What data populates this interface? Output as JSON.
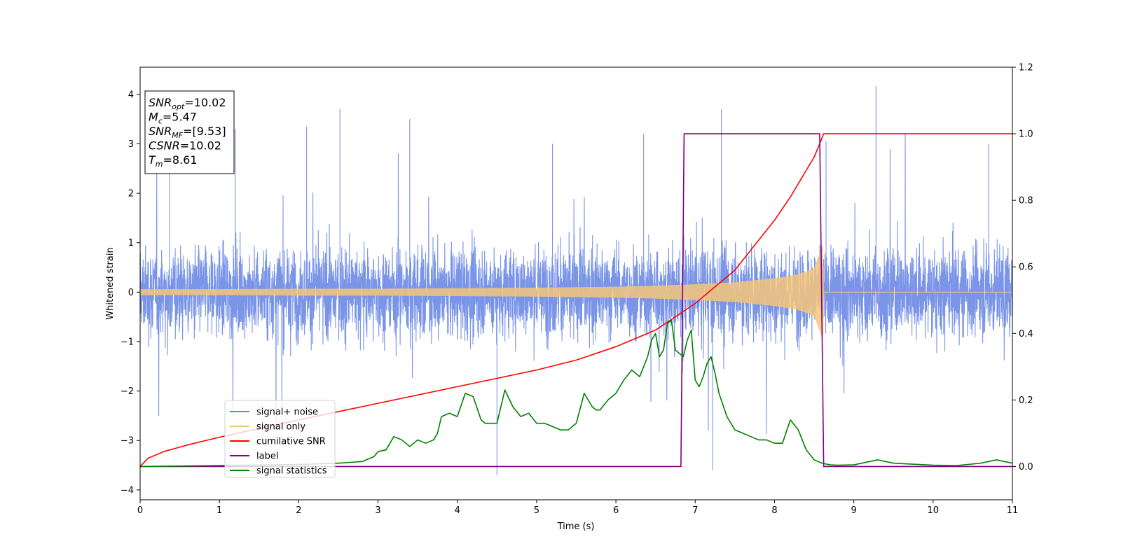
{
  "chart_data": {
    "type": "line",
    "xlabel": "Time (s)",
    "ylabel": "Whitened strain",
    "xlim": [
      0,
      11
    ],
    "ylim_left": [
      -4.2,
      4.55
    ],
    "ylim_right": [
      -0.1,
      1.2
    ],
    "x_ticks": [
      0,
      1,
      2,
      3,
      4,
      5,
      6,
      7,
      8,
      9,
      10,
      11
    ],
    "y_left_ticks": [
      -4,
      -3,
      -2,
      -1,
      0,
      1,
      2,
      3,
      4
    ],
    "y_right_ticks": [
      0.0,
      0.2,
      0.4,
      0.6,
      0.8,
      1.0,
      1.2
    ],
    "x_tick_labels": [
      "0",
      "1",
      "2",
      "3",
      "4",
      "5",
      "6",
      "7",
      "8",
      "9",
      "10",
      "11"
    ],
    "y_left_tick_labels": [
      "−4",
      "−3",
      "−2",
      "−1",
      "0",
      "1",
      "2",
      "3",
      "4"
    ],
    "y_right_tick_labels": [
      "0.0",
      "0.2",
      "0.4",
      "0.6",
      "0.8",
      "1.0",
      "1.2"
    ],
    "legend": {
      "placement": "lower-left",
      "entries": [
        {
          "label": "signal+ noise",
          "color": "#6b8ae6"
        },
        {
          "label": "signal only",
          "color": "#f5c57a"
        },
        {
          "label": "cumilative SNR",
          "color": "#ff0000"
        },
        {
          "label": "label",
          "color": "#800080"
        },
        {
          "label": "signal statistics",
          "color": "#008000"
        }
      ]
    },
    "info_box": [
      {
        "main": "SNR",
        "sub": "opt",
        "rest": "=10.02"
      },
      {
        "main": "M",
        "sub": "c",
        "rest": "=5.47"
      },
      {
        "main": "SNR",
        "sub": "MF",
        "rest": "=[9.53]"
      },
      {
        "main": "CSNR",
        "sub": "",
        "rest": "=10.02"
      },
      {
        "main": "T",
        "sub": "m",
        "rest": "=8.61"
      }
    ],
    "series": [
      {
        "name": "signal+ noise",
        "axis": "left",
        "color": "#6b8ae6",
        "envelope": {
          "typical_amplitude": 1.6,
          "max": 4.17,
          "min": -3.7
        },
        "spikes": [
          [
            0.37,
            3.1
          ],
          [
            1.2,
            3.3
          ],
          [
            2.1,
            3.35
          ],
          [
            2.52,
            3.7
          ],
          [
            3.4,
            3.5
          ],
          [
            4.5,
            -3.7
          ],
          [
            5.2,
            3.0
          ],
          [
            6.35,
            3.2
          ],
          [
            7.33,
            3.7
          ],
          [
            7.22,
            -3.6
          ],
          [
            8.65,
            3.05
          ],
          [
            9.28,
            4.17
          ],
          [
            10.7,
            3.0
          ]
        ]
      },
      {
        "name": "signal only",
        "axis": "left",
        "color": "#f5c57a",
        "amplitude": {
          "x": [
            0,
            1,
            2,
            3,
            4,
            5,
            6,
            6.5,
            7,
            7.5,
            8,
            8.3,
            8.5,
            8.61,
            8.62,
            11
          ],
          "y": [
            0.06,
            0.06,
            0.07,
            0.07,
            0.08,
            0.09,
            0.11,
            0.13,
            0.16,
            0.2,
            0.28,
            0.36,
            0.48,
            0.95,
            0.0,
            0.0
          ]
        }
      },
      {
        "name": "cumilative SNR",
        "axis": "right",
        "color": "#ff0000",
        "x": [
          0,
          0.1,
          0.3,
          0.6,
          1,
          2,
          3,
          4,
          5,
          5.5,
          6,
          6.5,
          7,
          7.5,
          8,
          8.2,
          8.4,
          8.5,
          8.57,
          8.62,
          11
        ],
        "y": [
          0.0,
          0.025,
          0.045,
          0.065,
          0.088,
          0.14,
          0.19,
          0.24,
          0.29,
          0.32,
          0.36,
          0.41,
          0.49,
          0.59,
          0.74,
          0.81,
          0.89,
          0.93,
          0.97,
          1.0,
          1.0
        ]
      },
      {
        "name": "label",
        "axis": "right",
        "color": "#800080",
        "x": [
          0,
          6.82,
          6.86,
          8.57,
          8.62,
          11
        ],
        "y": [
          0,
          0,
          1,
          1,
          0,
          0
        ]
      },
      {
        "name": "signal statistics",
        "axis": "right",
        "color": "#008000",
        "x": [
          0,
          1,
          2,
          2.5,
          2.8,
          2.95,
          3.0,
          3.1,
          3.2,
          3.3,
          3.4,
          3.5,
          3.6,
          3.7,
          3.75,
          3.8,
          3.9,
          4.0,
          4.1,
          4.2,
          4.3,
          4.35,
          4.4,
          4.5,
          4.6,
          4.7,
          4.8,
          4.9,
          5.0,
          5.1,
          5.2,
          5.3,
          5.4,
          5.5,
          5.6,
          5.7,
          5.75,
          5.8,
          5.9,
          6.0,
          6.1,
          6.2,
          6.3,
          6.4,
          6.45,
          6.5,
          6.55,
          6.6,
          6.65,
          6.7,
          6.75,
          6.8,
          6.85,
          6.9,
          6.95,
          7.0,
          7.05,
          7.1,
          7.15,
          7.2,
          7.25,
          7.3,
          7.4,
          7.5,
          7.6,
          7.7,
          7.8,
          7.9,
          8.0,
          8.1,
          8.2,
          8.3,
          8.4,
          8.5,
          8.6,
          8.7,
          8.8,
          9.0,
          9.3,
          9.5,
          10.0,
          10.3,
          10.6,
          10.8,
          11
        ],
        "y": [
          0.0,
          0.003,
          0.006,
          0.01,
          0.015,
          0.03,
          0.045,
          0.05,
          0.09,
          0.08,
          0.06,
          0.08,
          0.07,
          0.08,
          0.1,
          0.15,
          0.16,
          0.15,
          0.22,
          0.21,
          0.14,
          0.13,
          0.13,
          0.13,
          0.23,
          0.18,
          0.15,
          0.16,
          0.13,
          0.13,
          0.12,
          0.11,
          0.11,
          0.13,
          0.22,
          0.18,
          0.17,
          0.17,
          0.2,
          0.22,
          0.26,
          0.29,
          0.27,
          0.33,
          0.38,
          0.4,
          0.33,
          0.35,
          0.43,
          0.44,
          0.35,
          0.34,
          0.33,
          0.38,
          0.41,
          0.26,
          0.24,
          0.27,
          0.31,
          0.33,
          0.28,
          0.22,
          0.15,
          0.11,
          0.1,
          0.09,
          0.08,
          0.08,
          0.07,
          0.07,
          0.14,
          0.11,
          0.05,
          0.02,
          0.01,
          0.005,
          0.004,
          0.005,
          0.02,
          0.01,
          0.004,
          0.003,
          0.01,
          0.02,
          0.01
        ]
      }
    ]
  }
}
